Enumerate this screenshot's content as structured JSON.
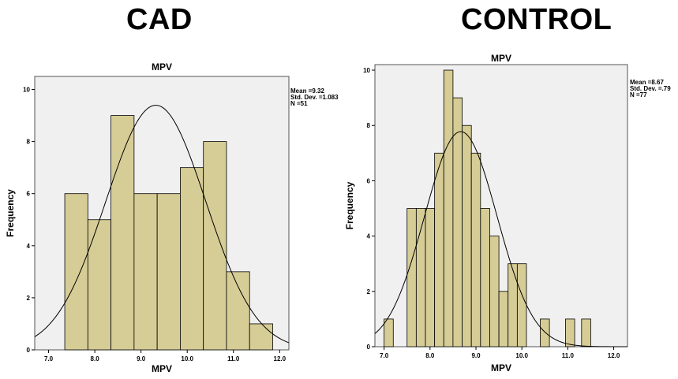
{
  "panels": {
    "cad": {
      "heading": "CAD"
    },
    "control": {
      "heading": "CONTROL"
    }
  },
  "chart_data": [
    {
      "type": "bar",
      "title": "MPV",
      "xlabel": "MPV",
      "ylabel": "Frequency",
      "xlim": [
        6.7,
        12.2
      ],
      "ylim": [
        0,
        10.5
      ],
      "xticks": [
        7.0,
        8.0,
        9.0,
        10.0,
        11.0,
        12.0
      ],
      "xtick_labels": [
        "7.0",
        "8.0",
        "9.0",
        "10.0",
        "11.0",
        "12.0"
      ],
      "yticks": [
        0,
        2,
        4,
        6,
        8,
        10
      ],
      "bin_width": 0.5,
      "bins": [
        {
          "start": 7.35,
          "count": 6
        },
        {
          "start": 7.85,
          "count": 5
        },
        {
          "start": 8.35,
          "count": 9
        },
        {
          "start": 8.85,
          "count": 6
        },
        {
          "start": 9.35,
          "count": 6
        },
        {
          "start": 9.85,
          "count": 7
        },
        {
          "start": 10.35,
          "count": 8
        },
        {
          "start": 10.85,
          "count": 3
        },
        {
          "start": 11.35,
          "count": 1
        }
      ],
      "normal_curve": {
        "mean": 9.32,
        "sd": 1.083,
        "n": 51
      },
      "stats_lines": [
        "Mean =9.32",
        "Std. Dev. =1.083",
        "N =51"
      ],
      "colors": {
        "bar": "#d6cc96",
        "plot_bg": "#f0f0f0",
        "edge": "#000000"
      }
    },
    {
      "type": "bar",
      "title": "MPV",
      "xlabel": "MPV",
      "ylabel": "Frequency",
      "xlim": [
        6.8,
        12.3
      ],
      "ylim": [
        0,
        10.2
      ],
      "xticks": [
        7.0,
        8.0,
        9.0,
        10.0,
        11.0,
        12.0
      ],
      "xtick_labels": [
        "7.0",
        "8.0",
        "9.0",
        "10.0",
        "11.0",
        "12.0"
      ],
      "yticks": [
        0,
        2,
        4,
        6,
        8,
        10
      ],
      "bin_width": 0.2,
      "bins": [
        {
          "start": 7.0,
          "count": 1
        },
        {
          "start": 7.2,
          "count": 0
        },
        {
          "start": 7.4,
          "count": 0
        },
        {
          "start": 7.5,
          "count": 5
        },
        {
          "start": 7.7,
          "count": 5
        },
        {
          "start": 7.9,
          "count": 5
        },
        {
          "start": 8.1,
          "count": 7
        },
        {
          "start": 8.3,
          "count": 10
        },
        {
          "start": 8.5,
          "count": 9
        },
        {
          "start": 8.7,
          "count": 8
        },
        {
          "start": 8.9,
          "count": 7
        },
        {
          "start": 9.1,
          "count": 5
        },
        {
          "start": 9.3,
          "count": 4
        },
        {
          "start": 9.5,
          "count": 2
        },
        {
          "start": 9.7,
          "count": 3
        },
        {
          "start": 9.9,
          "count": 3
        },
        {
          "start": 10.4,
          "count": 1
        },
        {
          "start": 10.95,
          "count": 1
        },
        {
          "start": 11.3,
          "count": 1
        }
      ],
      "normal_curve": {
        "mean": 8.67,
        "sd": 0.79,
        "n": 77
      },
      "stats_lines": [
        "Mean =8.67",
        "Std. Dev. =.79",
        "N =77"
      ],
      "colors": {
        "bar": "#d6cc96",
        "plot_bg": "#f0f0f0",
        "edge": "#000000"
      }
    }
  ]
}
